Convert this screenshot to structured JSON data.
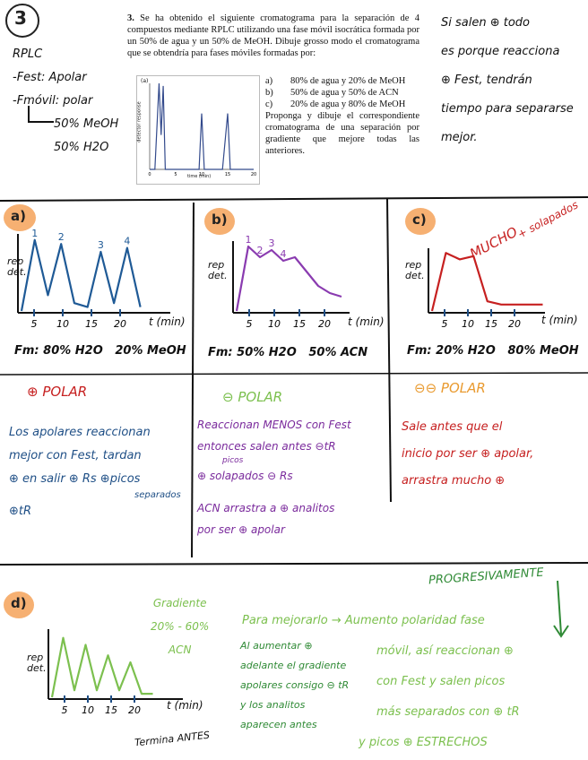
{
  "header": {
    "number_circle": "3",
    "notes_left": [
      "RPLC",
      "-Fest: Apolar",
      "-Fmóvil: polar",
      "50% MeOH",
      "50% H2O"
    ],
    "notes_right": [
      "Si salen ⊕ todo",
      "es porque reacciona",
      "⊕ Fest, tendrán",
      "tiempo para separarse",
      "mejor."
    ]
  },
  "problem": {
    "number": "3.",
    "text": "Se ha obtenido el siguiente cromatograma para la separación de 4 compuestos mediante RPLC utilizando una fase móvil isocrática formada por un 50% de agua y un 50% de MeOH. Dibuje grosso modo el cromatograma que se obtendría para fases móviles formadas por:",
    "options": [
      {
        "label": "a)",
        "text": "80% de agua y 20% de MeOH"
      },
      {
        "label": "b)",
        "text": "50% de agua y 50% de ACN"
      },
      {
        "label": "c)",
        "text": "20% de agua y 80% de MeOH"
      }
    ],
    "closing": "Proponga y dibuje el correspondiente cromatograma de una separación por gradiente que mejore todas las anteriores.",
    "figure": {
      "ylabel": "detector response",
      "xlabel": "time (min)",
      "panel": "(a)",
      "x_ticks": [
        "0",
        "5",
        "10",
        "15",
        "20"
      ]
    }
  },
  "panels": {
    "a": {
      "badge": "a)",
      "peak_labels": [
        "1",
        "2",
        "3",
        "4"
      ],
      "ylabel": [
        "rep",
        "det."
      ],
      "xlabel": "t (min)",
      "x_ticks": [
        "5",
        "10",
        "15",
        "20"
      ],
      "mobile_phase": "Fm: 80% H2O   20% MeOH",
      "heading": "⊕ POLAR",
      "notes": [
        "Los apolares reaccionan",
        "mejor con Fest, tardan",
        "⊕ en salir ⊕ Rs ⊕picos",
        "separados",
        "⊕tR"
      ]
    },
    "b": {
      "badge": "b)",
      "peak_labels": [
        "1",
        "2",
        "3",
        "4"
      ],
      "ylabel": [
        "rep",
        "det."
      ],
      "xlabel": "t (min)",
      "x_ticks": [
        "5",
        "10",
        "15",
        "20"
      ],
      "mobile_phase": "Fm: 50% H2O   50% ACN",
      "heading": "⊖ POLAR",
      "notes": [
        "Reaccionan MENOS con Fest",
        "entonces salen antes ⊖tR",
        "picos",
        "⊕ solapados ⊖ Rs",
        "ACN arrastra a ⊕ analitos",
        "por ser ⊕ apolar"
      ]
    },
    "c": {
      "badge": "c)",
      "peak_labels": [
        "MUCHO",
        "+ solapados"
      ],
      "ylabel": [
        "rep",
        "det."
      ],
      "xlabel": "t (min)",
      "x_ticks": [
        "5",
        "10",
        "15",
        "20"
      ],
      "mobile_phase": "Fm: 20% H2O   80% MeOH",
      "heading": "⊖⊖ POLAR",
      "notes": [
        "Sale antes que el",
        "inicio por ser ⊕ apolar,",
        "arrastra mucho ⊕"
      ]
    },
    "d": {
      "badge": "d)",
      "ylabel": [
        "rep",
        "det."
      ],
      "xlabel": "t (min)",
      "x_ticks": [
        "5",
        "10",
        "15",
        "20"
      ],
      "gradient_note": [
        "Gradiente",
        "20% - 60%",
        "ACN"
      ],
      "ends_note": "Termina ANTES",
      "center_notes": [
        "Al aumentar ⊕",
        "adelante el gradiente",
        "apolares consigo ⊖ tR",
        "y los analitos",
        "aparecen antes"
      ],
      "main_notes": [
        "Para mejorarlo → Aumento polaridad fase",
        "móvil, así reaccionan ⊕",
        "con Fest y salen picos",
        "más separados con ⊕ tR",
        "y picos ⊕ ESTRECHOS"
      ],
      "progressive": "PROGRESIVAMENTE"
    }
  },
  "chart_data": [
    {
      "type": "line",
      "title": "",
      "xlabel": "time (min)",
      "ylabel": "detector response",
      "x": [
        0,
        1,
        1.8,
        2.2,
        2.6,
        3,
        4,
        6,
        8,
        9.5,
        10,
        10.5,
        12,
        14,
        15,
        15.5,
        16,
        18,
        20
      ],
      "series": [
        {
          "values": [
            0,
            0,
            1.0,
            0.4,
            0.97,
            0,
            0,
            0,
            0,
            0,
            0.65,
            0,
            0,
            0,
            0.65,
            0,
            0,
            0,
            0
          ]
        }
      ]
    },
    {
      "type": "line",
      "title": "",
      "xlabel": "t (min)",
      "ylabel": "rep det.",
      "x_ticks": [
        "5",
        "10",
        "15",
        "20"
      ],
      "series": [
        {
          "values": [
            0,
            0.9,
            0.2,
            0.85,
            0.1,
            0.05,
            0.75,
            0.1,
            0.8,
            0.05
          ]
        }
      ]
    },
    {
      "type": "line",
      "title": "",
      "xlabel": "t (min)",
      "ylabel": "rep det.",
      "x_ticks": [
        "5",
        "10",
        "15",
        "20"
      ],
      "series": [
        {
          "values": [
            0,
            0.9,
            0.75,
            0.85,
            0.7,
            0.75,
            0.55,
            0.35,
            0.25,
            0.2
          ]
        }
      ]
    },
    {
      "type": "line",
      "title": "",
      "xlabel": "t (min)",
      "ylabel": "rep det.",
      "x_ticks": [
        "5",
        "10",
        "15",
        "20"
      ],
      "series": [
        {
          "values": [
            0,
            0.9,
            0.8,
            0.85,
            0.15,
            0.1,
            0.1,
            0.1,
            0.1
          ]
        }
      ]
    },
    {
      "type": "line",
      "title": "",
      "xlabel": "t (min)",
      "ylabel": "rep det.",
      "x_ticks": [
        "5",
        "10",
        "15",
        "20"
      ],
      "series": [
        {
          "values": [
            0,
            0.85,
            0.1,
            0.75,
            0.1,
            0.6,
            0.1,
            0.5,
            0.05,
            0.05
          ]
        }
      ]
    }
  ]
}
